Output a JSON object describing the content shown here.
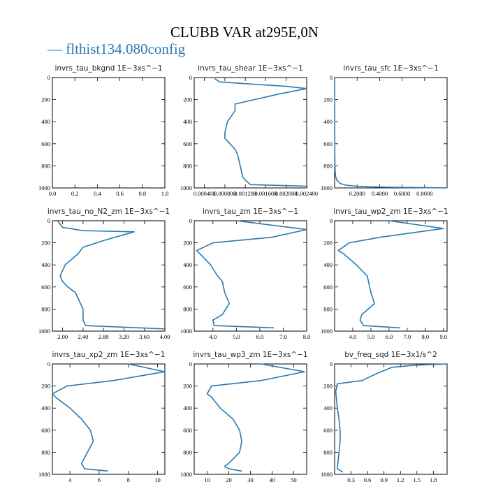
{
  "figure": {
    "title": "CLUBB VAR at295E,0N",
    "legend": "— flthist134.080config"
  },
  "colors": {
    "series": "#2a7ab0",
    "axis": "#000000"
  },
  "chart_data": [
    {
      "type": "line",
      "title": "invrs_tau_bkgnd   1E−3xs^−1",
      "series": [],
      "xlim": [
        0,
        1
      ],
      "ylim": [
        0,
        1000
      ],
      "xticks": [
        0,
        0.2,
        0.4,
        0.6,
        0.8,
        1.0
      ],
      "xtick_labels": [
        "0.0",
        "0.2",
        "0.4",
        "0.6",
        "0.8",
        "1.0"
      ],
      "yticks": [
        0,
        200,
        400,
        600,
        800,
        1000
      ],
      "ytick_labels": [
        "0",
        "200",
        "400",
        "600",
        "800",
        "1000"
      ],
      "y_inverted": true
    },
    {
      "type": "line",
      "title": "invrs_tau_shear   1E−3xs^−1",
      "series": [
        {
          "x": [
            0.0006,
            0.0007,
            0.002,
            0.0024,
            0.00185,
            0.001,
            0.001,
            0.00085,
            0.0008,
            0.0008,
            0.0009,
            0.001,
            0.00105,
            0.0011,
            0.00115,
            0.0012,
            0.00125,
            0.0013,
            0.00245,
            0.0024
          ],
          "y": [
            10,
            40,
            80,
            100,
            150,
            240,
            300,
            400,
            500,
            550,
            600,
            650,
            700,
            800,
            900,
            930,
            950,
            970,
            985,
            1000
          ]
        }
      ],
      "xlim": [
        0.0002,
        0.0024
      ],
      "ylim": [
        0,
        1000
      ],
      "xticks": [
        0.0004,
        0.0008,
        0.0012,
        0.0016,
        0.002,
        0.0024
      ],
      "xtick_labels": [
        "0.000400",
        "0.000800",
        "0.001200",
        "0.001600",
        "0.002000",
        "0.002400"
      ],
      "yticks": [
        0,
        200,
        400,
        600,
        800,
        1000
      ],
      "ytick_labels": [
        "0",
        "200",
        "400",
        "600",
        "800",
        "1000"
      ],
      "y_inverted": true
    },
    {
      "type": "line",
      "title": "invrs_tau_sfc   1E−3xs^−1",
      "series": [
        {
          "x": [
            0.001,
            0.001,
            0.001,
            0.002,
            0.003,
            0.005,
            0.01,
            0.02,
            0.05,
            0.1,
            0.2,
            0.3,
            0.5,
            0.7,
            0.85,
            1.0
          ],
          "y": [
            0,
            200,
            500,
            700,
            800,
            850,
            900,
            930,
            960,
            975,
            985,
            990,
            994,
            996,
            998,
            1000
          ]
        }
      ],
      "xlim": [
        0,
        1
      ],
      "ylim": [
        0,
        1000
      ],
      "xticks": [
        0.2,
        0.4,
        0.6,
        0.8
      ],
      "xtick_labels": [
        "0.2000",
        "0.4000",
        "0.6000",
        "0.8000"
      ],
      "yticks": [
        0,
        200,
        400,
        600,
        800,
        1000
      ],
      "ytick_labels": [
        "0",
        "200",
        "400",
        "600",
        "800",
        "1000"
      ],
      "y_inverted": true
    },
    {
      "type": "line",
      "title": "invrs_tau_no_N2_zm   1E−3xs^−1",
      "series": [
        {
          "x": [
            1.9,
            2.0,
            2.4,
            3.4,
            2.8,
            2.4,
            2.3,
            2.05,
            1.95,
            2.0,
            2.1,
            2.25,
            2.3,
            2.4,
            2.4,
            2.45,
            4.0
          ],
          "y": [
            0,
            60,
            90,
            100,
            180,
            240,
            300,
            400,
            500,
            550,
            600,
            650,
            700,
            800,
            900,
            950,
            980
          ]
        }
      ],
      "xlim": [
        1.8,
        4.0
      ],
      "ylim": [
        0,
        1000
      ],
      "xticks": [
        2.0,
        2.4,
        2.8,
        3.2,
        3.6,
        4.0
      ],
      "xtick_labels": [
        "2.00",
        "2.40",
        "2.80",
        "3.20",
        "3.60",
        "4.00"
      ],
      "yticks": [
        0,
        200,
        400,
        600,
        800,
        1000
      ],
      "ytick_labels": [
        "0",
        "200",
        "400",
        "600",
        "800",
        "1000"
      ],
      "y_inverted": true
    },
    {
      "type": "line",
      "title": "invrs_tau_zm   1E−3xs^−1",
      "series": [
        {
          "x": [
            5.0,
            8.0,
            6.5,
            4.0,
            3.3,
            3.45,
            3.9,
            4.2,
            4.4,
            4.5,
            4.7,
            4.4,
            4.0,
            4.05,
            6.6
          ],
          "y": [
            0,
            80,
            150,
            200,
            270,
            300,
            400,
            500,
            550,
            650,
            750,
            850,
            900,
            950,
            970
          ]
        }
      ],
      "xlim": [
        3.2,
        8.0
      ],
      "ylim": [
        0,
        1000
      ],
      "xticks": [
        4.0,
        5.0,
        6.0,
        7.0,
        8.0
      ],
      "xtick_labels": [
        "4.0",
        "5.0",
        "6.0",
        "7.0",
        "8.0"
      ],
      "yticks": [
        0,
        200,
        400,
        600,
        800,
        1000
      ],
      "ytick_labels": [
        "0",
        "200",
        "400",
        "600",
        "800",
        "1000"
      ],
      "y_inverted": true
    },
    {
      "type": "line",
      "title": "invrs_tau_wp2_zm   1E−3xs^−1",
      "series": [
        {
          "x": [
            6.0,
            9.0,
            5.5,
            3.8,
            3.2,
            3.5,
            4.2,
            4.8,
            5.0,
            5.2,
            4.5,
            4.4,
            4.6,
            6.6
          ],
          "y": [
            0,
            70,
            150,
            200,
            270,
            300,
            400,
            500,
            650,
            750,
            850,
            900,
            950,
            970
          ]
        }
      ],
      "xlim": [
        3.0,
        9.2
      ],
      "ylim": [
        0,
        1000
      ],
      "xticks": [
        4.0,
        5.0,
        6.0,
        7.0,
        8.0,
        9.0
      ],
      "xtick_labels": [
        "4.0",
        "5.0",
        "6.0",
        "7.0",
        "8.0",
        "9.0"
      ],
      "yticks": [
        0,
        200,
        400,
        600,
        800,
        1000
      ],
      "ytick_labels": [
        "0",
        "200",
        "400",
        "600",
        "800",
        "1000"
      ],
      "y_inverted": true
    },
    {
      "type": "line",
      "title": "invrs_tau_xp2_zm   1E−3xs^−1",
      "series": [
        {
          "x": [
            8.0,
            10.5,
            7.0,
            3.8,
            2.8,
            3.0,
            4.0,
            4.8,
            5.4,
            5.6,
            5.2,
            4.8,
            5.0,
            6.6
          ],
          "y": [
            0,
            70,
            150,
            200,
            270,
            300,
            400,
            500,
            600,
            700,
            800,
            900,
            950,
            970
          ]
        }
      ],
      "xlim": [
        2.8,
        10.5
      ],
      "ylim": [
        0,
        1000
      ],
      "xticks": [
        4,
        6,
        8,
        10
      ],
      "xtick_labels": [
        "4",
        "6",
        "8",
        "10"
      ],
      "yticks": [
        0,
        200,
        400,
        600,
        800,
        1000
      ],
      "ytick_labels": [
        "0",
        "200",
        "400",
        "600",
        "800",
        "1000"
      ],
      "y_inverted": true
    },
    {
      "type": "line",
      "title": "invrs_tau_wp3_zm   1E−3xs^−1",
      "series": [
        {
          "x": [
            35,
            55,
            35,
            12,
            10,
            12,
            16,
            22,
            25,
            26,
            25,
            20,
            18,
            20,
            26
          ],
          "y": [
            0,
            70,
            150,
            200,
            270,
            300,
            400,
            500,
            600,
            700,
            800,
            900,
            930,
            950,
            970
          ]
        }
      ],
      "xlim": [
        4,
        56
      ],
      "ylim": [
        0,
        1000
      ],
      "xticks": [
        10,
        20,
        30,
        40,
        50
      ],
      "xtick_labels": [
        "10",
        "20",
        "30",
        "40",
        "50"
      ],
      "yticks": [
        0,
        200,
        400,
        600,
        800,
        1000
      ],
      "ytick_labels": [
        "0",
        "200",
        "400",
        "600",
        "800",
        "1000"
      ],
      "y_inverted": true
    },
    {
      "type": "line",
      "title": "bv_freq_sqd   1E−3x1/s^2",
      "series": [
        {
          "x": [
            2.1,
            1.5,
            1.05,
            0.8,
            0.5,
            0.05,
            0.02,
            0.05,
            0.08,
            0.1,
            0.1,
            0.08,
            0.06,
            0.05,
            0.15
          ],
          "y": [
            0,
            10,
            30,
            80,
            150,
            180,
            250,
            400,
            500,
            600,
            700,
            800,
            900,
            950,
            980
          ]
        }
      ],
      "xlim": [
        0,
        2.05
      ],
      "ylim": [
        0,
        1000
      ],
      "xticks": [
        0.3,
        0.6,
        0.9,
        1.2,
        1.5,
        1.8
      ],
      "xtick_labels": [
        "0.3",
        "0.6",
        "0.9",
        "1.2",
        "1.5",
        "1.8"
      ],
      "yticks": [
        0,
        200,
        400,
        600,
        800,
        1000
      ],
      "ytick_labels": [
        "0",
        "200",
        "400",
        "600",
        "800",
        "1000"
      ],
      "y_inverted": true
    }
  ]
}
